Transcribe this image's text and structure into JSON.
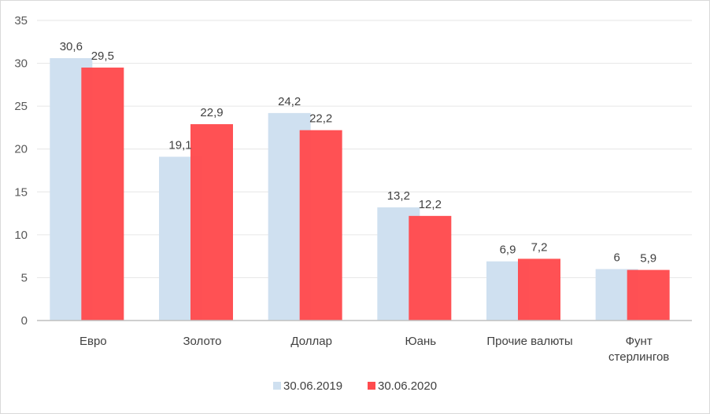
{
  "chart_data": {
    "type": "bar",
    "categories": [
      "Евро",
      "Золото",
      "Доллар",
      "Юань",
      "Прочие  валюты",
      "Фунт стерлингов"
    ],
    "category_lines": [
      [
        "Евро"
      ],
      [
        "Золото"
      ],
      [
        "Доллар"
      ],
      [
        "Юань"
      ],
      [
        "Прочие  валюты"
      ],
      [
        "Фунт",
        "стерлингов"
      ]
    ],
    "series": [
      {
        "name": "30.06.2019",
        "color": "#cfe0f0",
        "values": [
          30.6,
          19.1,
          24.2,
          13.2,
          6.9,
          6
        ],
        "labels": [
          "30,6",
          "19,1",
          "24,2",
          "13,2",
          "6,9",
          "6"
        ]
      },
      {
        "name": "30.06.2020",
        "color": "#ff4b4e",
        "values": [
          29.5,
          22.9,
          22.2,
          12.2,
          7.2,
          5.9
        ],
        "labels": [
          "29,5",
          "22,9",
          "22,2",
          "12,2",
          "7,2",
          "5,9"
        ]
      }
    ],
    "y_ticks": [
      0,
      5,
      10,
      15,
      20,
      25,
      30,
      35
    ],
    "ylim": [
      0,
      35
    ],
    "grid": true,
    "legend_position": "bottom",
    "title": "",
    "xlabel": "",
    "ylabel": ""
  }
}
